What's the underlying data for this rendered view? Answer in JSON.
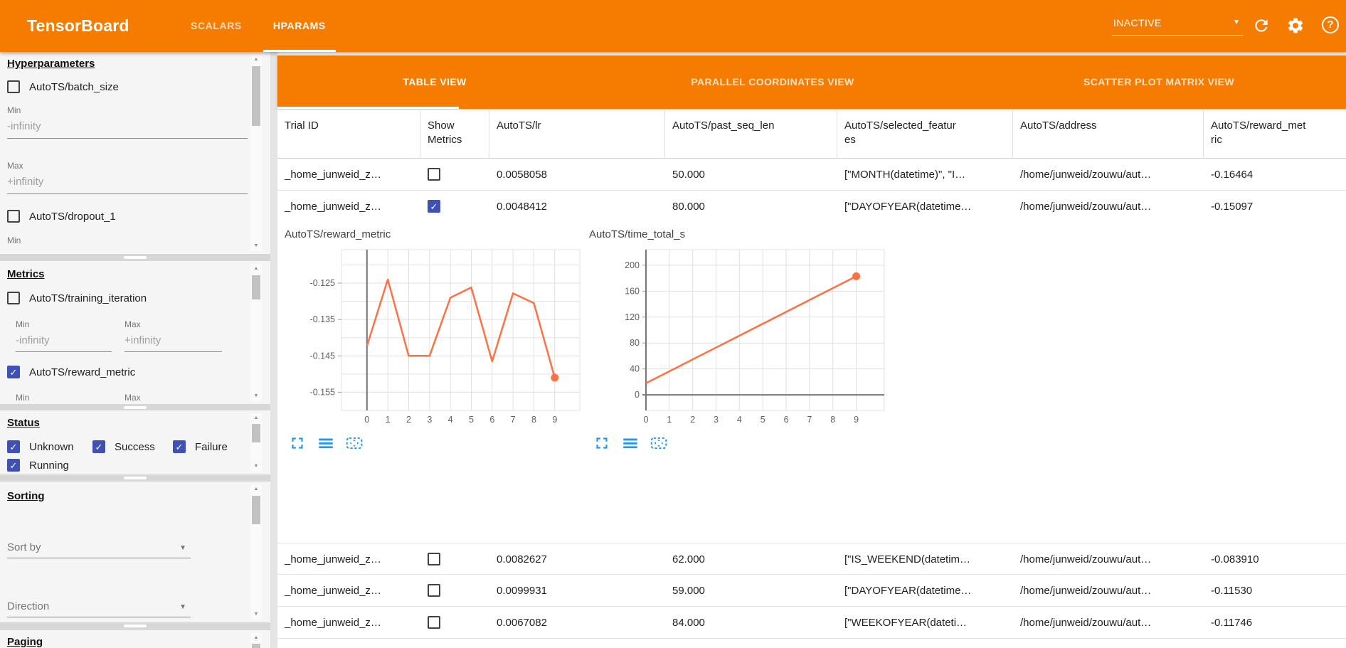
{
  "colors": {
    "accent_orange": "#f57c00",
    "checkbox_blue": "#3f51b5",
    "chart_line": "#ff7043",
    "control_blue": "#2196f3"
  },
  "icons": {
    "dropdown_arrow": "▼",
    "scroll_up": "▲",
    "scroll_down": "▼",
    "checkmark": "✓",
    "help_mark": "?"
  },
  "topbar": {
    "title": "TensorBoard",
    "nav": [
      {
        "label": "SCALARS",
        "active": false
      },
      {
        "label": "HPARAMS",
        "active": true
      }
    ],
    "status_value": "INACTIVE"
  },
  "sidebar": {
    "hyperparameters": {
      "title": "Hyperparameters",
      "param1": {
        "label": "AutoTS/batch_size",
        "checked": false
      },
      "min1_label": "Min",
      "min1_value": "-infinity",
      "max1_label": "Max",
      "max1_value": "+infinity",
      "param2": {
        "label": "AutoTS/dropout_1",
        "checked": false
      },
      "min2_label": "Min"
    },
    "metrics": {
      "title": "Metrics",
      "metric1": {
        "label": "AutoTS/training_iteration",
        "checked": false
      },
      "min_label": "Min",
      "min_value": "-infinity",
      "max_label": "Max",
      "max_value": "+infinity",
      "metric2": {
        "label": "AutoTS/reward_metric",
        "checked": true
      },
      "min2_label": "Min",
      "max2_label": "Max"
    },
    "status": {
      "title": "Status",
      "options": [
        {
          "label": "Unknown",
          "checked": true
        },
        {
          "label": "Success",
          "checked": true
        },
        {
          "label": "Failure",
          "checked": true
        },
        {
          "label": "Running",
          "checked": true
        }
      ]
    },
    "sorting": {
      "title": "Sorting",
      "sort_by_placeholder": "Sort by",
      "direction_placeholder": "Direction"
    },
    "paging": {
      "title": "Paging"
    }
  },
  "main": {
    "view_tabs": [
      {
        "label": "TABLE VIEW",
        "active": true
      },
      {
        "label": "PARALLEL COORDINATES VIEW",
        "active": false
      },
      {
        "label": "SCATTER PLOT MATRIX VIEW",
        "active": false
      }
    ],
    "table": {
      "columns": [
        "Trial ID",
        "Show\nMetrics",
        "AutoTS/lr",
        "AutoTS/past_seq_len",
        "AutoTS/selected_featur\nes",
        "AutoTS/address",
        "AutoTS/reward_met\nric"
      ],
      "rows": [
        {
          "trial_id": "_home_junweid_z…",
          "show_metrics": false,
          "lr": "0.0058058",
          "past_seq_len": "50.000",
          "selected_features": "[\"MONTH(datetime)\", \"I…",
          "address": "/home/junweid/zouwu/aut…",
          "reward_metric": "-0.16464"
        },
        {
          "trial_id": "_home_junweid_z…",
          "show_metrics": true,
          "lr": "0.0048412",
          "past_seq_len": "80.000",
          "selected_features": "[\"DAYOFYEAR(datetime…",
          "address": "/home/junweid/zouwu/aut…",
          "reward_metric": "-0.15097"
        },
        {
          "trial_id": "_home_junweid_z…",
          "show_metrics": false,
          "lr": "0.0082627",
          "past_seq_len": "62.000",
          "selected_features": "[\"IS_WEEKEND(datetim…",
          "address": "/home/junweid/zouwu/aut…",
          "reward_metric": "-0.083910"
        },
        {
          "trial_id": "_home_junweid_z…",
          "show_metrics": false,
          "lr": "0.0099931",
          "past_seq_len": "59.000",
          "selected_features": "[\"DAYOFYEAR(datetime…",
          "address": "/home/junweid/zouwu/aut…",
          "reward_metric": "-0.11530"
        },
        {
          "trial_id": "_home_junweid_z…",
          "show_metrics": false,
          "lr": "0.0067082",
          "past_seq_len": "84.000",
          "selected_features": "[\"WEEKOFYEAR(dateti…",
          "address": "/home/junweid/zouwu/aut…",
          "reward_metric": "-0.11746"
        }
      ]
    }
  },
  "chart_data": [
    {
      "type": "line",
      "title": "AutoTS/reward_metric",
      "x": [
        0,
        1,
        2,
        3,
        4,
        5,
        6,
        7,
        8,
        9
      ],
      "values": [
        -0.1423,
        -0.124,
        -0.145,
        -0.145,
        -0.129,
        -0.1262,
        -0.1465,
        -0.1278,
        -0.1305,
        -0.151
      ],
      "xticks": [
        0,
        1,
        2,
        3,
        4,
        5,
        6,
        7,
        8,
        9
      ],
      "xdomain": [
        -1.22,
        10.2
      ],
      "ylim": [
        -0.16,
        -0.1158
      ],
      "ygrid": [
        -0.16,
        -0.155,
        -0.15,
        -0.145,
        -0.14,
        -0.135,
        -0.13,
        -0.125,
        -0.12
      ],
      "yticks": [
        -0.125,
        -0.135,
        -0.145,
        -0.155
      ],
      "ytick_labels": [
        "-0.125",
        "-0.135",
        "-0.145",
        "-0.155"
      ],
      "x_axis_line_at": 0,
      "y_axis_line_at": null,
      "line_color": "#ff7043",
      "end_dot": true,
      "grid": true,
      "legend": "none"
    },
    {
      "type": "line",
      "title": "AutoTS/time_total_s",
      "x": [
        0,
        9
      ],
      "values": [
        18,
        183
      ],
      "xticks": [
        0,
        1,
        2,
        3,
        4,
        5,
        6,
        7,
        8,
        9
      ],
      "xdomain": [
        0,
        10.2
      ],
      "ylim": [
        -24,
        224
      ],
      "ygrid": [
        0,
        40,
        80,
        120,
        160,
        200
      ],
      "yticks": [
        0,
        40,
        80,
        120,
        160,
        200
      ],
      "ytick_labels": [
        "0",
        "40",
        "80",
        "120",
        "160",
        "200"
      ],
      "x_axis_line_at": 0,
      "y_axis_line_at": 0,
      "line_color": "#ff7043",
      "end_dot": true,
      "grid": true,
      "legend": "none"
    }
  ]
}
